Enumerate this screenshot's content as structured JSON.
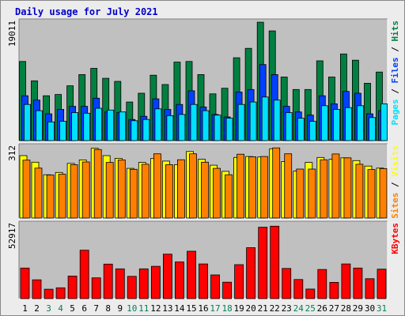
{
  "title": "Daily usage for July 2021",
  "colors": {
    "hits": "#008040",
    "files": "#0040ff",
    "pages": "#00e0ff",
    "visits": "#ffff00",
    "sites": "#ff8000",
    "kbytes": "#ff0000",
    "weekend_day": "#00805c",
    "weekday": "#000000",
    "panel_bg": "#c0c0c0",
    "frame_bg": "#ececec"
  },
  "chart_data": [
    {
      "type": "bar",
      "panel": "top",
      "ymax_label": "19011",
      "ylim": [
        0,
        19011
      ],
      "categories": [
        "1",
        "2",
        "3",
        "4",
        "5",
        "6",
        "7",
        "8",
        "9",
        "10",
        "11",
        "12",
        "13",
        "14",
        "15",
        "16",
        "17",
        "18",
        "19",
        "20",
        "21",
        "22",
        "23",
        "24",
        "25",
        "26",
        "27",
        "28",
        "29",
        "30",
        "31"
      ],
      "weekend_days": [
        3,
        4,
        10,
        11,
        17,
        18,
        24,
        25,
        31
      ],
      "legend": [
        {
          "label": "Pages",
          "color": "#00e0ff"
        },
        {
          "label": " / ",
          "color": "#000000"
        },
        {
          "label": "Files",
          "color": "#0040ff"
        },
        {
          "label": " / ",
          "color": "#000000"
        },
        {
          "label": "Hits",
          "color": "#008040"
        }
      ],
      "series": [
        {
          "name": "Hits",
          "color": "#008040",
          "values": [
            12700,
            9600,
            7200,
            7400,
            8800,
            10600,
            11600,
            10000,
            9500,
            6200,
            7600,
            10500,
            9000,
            12600,
            12700,
            10600,
            7500,
            8400,
            13300,
            14800,
            19000,
            17600,
            10200,
            8200,
            8200,
            12800,
            10200,
            13900,
            12900,
            9200,
            11000
          ]
        },
        {
          "name": "Files",
          "color": "#0040ff",
          "values": [
            7200,
            6500,
            4300,
            5000,
            5500,
            5500,
            6800,
            4600,
            4500,
            3400,
            3900,
            6700,
            5000,
            5800,
            8000,
            5400,
            4200,
            3800,
            7800,
            8200,
            12200,
            10600,
            5500,
            4600,
            4100,
            7200,
            5900,
            7900,
            7600,
            4300,
            4800
          ]
        },
        {
          "name": "Pages",
          "color": "#00e0ff",
          "values": [
            5800,
            4800,
            3000,
            3100,
            4500,
            4400,
            5200,
            4900,
            4600,
            3200,
            3400,
            5100,
            4000,
            4200,
            5800,
            4800,
            4100,
            3600,
            5800,
            6200,
            7000,
            6500,
            4500,
            3600,
            3100,
            5600,
            5000,
            5300,
            5600,
            3700,
            5900
          ]
        }
      ]
    },
    {
      "type": "bar",
      "panel": "middle",
      "ymax_label": "312",
      "ylim": [
        0,
        312
      ],
      "categories": [
        "1",
        "2",
        "3",
        "4",
        "5",
        "6",
        "7",
        "8",
        "9",
        "10",
        "11",
        "12",
        "13",
        "14",
        "15",
        "16",
        "17",
        "18",
        "19",
        "20",
        "21",
        "22",
        "23",
        "24",
        "25",
        "26",
        "27",
        "28",
        "29",
        "30",
        "31"
      ],
      "legend": [
        {
          "label": "Sites",
          "color": "#ff8000"
        },
        {
          "label": " / ",
          "color": "#000000"
        },
        {
          "label": "Visits",
          "color": "#ffff00"
        }
      ],
      "series": [
        {
          "name": "Visits",
          "color": "#ffff00",
          "values": [
            274,
            245,
            190,
            200,
            240,
            255,
            306,
            274,
            262,
            218,
            244,
            261,
            250,
            234,
            292,
            258,
            232,
            205,
            266,
            270,
            268,
            304,
            248,
            206,
            244,
            266,
            258,
            264,
            252,
            228,
            219
          ]
        },
        {
          "name": "Sites",
          "color": "#ff8000",
          "values": [
            254,
            219,
            189,
            192,
            234,
            246,
            301,
            244,
            255,
            214,
            236,
            282,
            234,
            256,
            282,
            245,
            218,
            190,
            280,
            269,
            270,
            308,
            282,
            215,
            215,
            256,
            281,
            264,
            236,
            213,
            217
          ]
        }
      ]
    },
    {
      "type": "bar",
      "panel": "bottom",
      "ymax_label": "52917",
      "ylim": [
        0,
        52917
      ],
      "categories": [
        "1",
        "2",
        "3",
        "4",
        "5",
        "6",
        "7",
        "8",
        "9",
        "10",
        "11",
        "12",
        "13",
        "14",
        "15",
        "16",
        "17",
        "18",
        "19",
        "20",
        "21",
        "22",
        "23",
        "24",
        "25",
        "26",
        "27",
        "28",
        "29",
        "30",
        "31"
      ],
      "legend": [
        {
          "label": "KBytes",
          "color": "#ff0000"
        }
      ],
      "series": [
        {
          "name": "KBytes",
          "color": "#ff0000",
          "values": [
            21800,
            13400,
            6700,
            7700,
            16100,
            34500,
            14800,
            24600,
            21200,
            15900,
            21200,
            23000,
            31700,
            26100,
            33800,
            24700,
            16900,
            11700,
            24200,
            36300,
            50900,
            51600,
            21500,
            13600,
            6800,
            20800,
            11600,
            24700,
            21800,
            14200,
            21000
          ]
        }
      ]
    }
  ]
}
